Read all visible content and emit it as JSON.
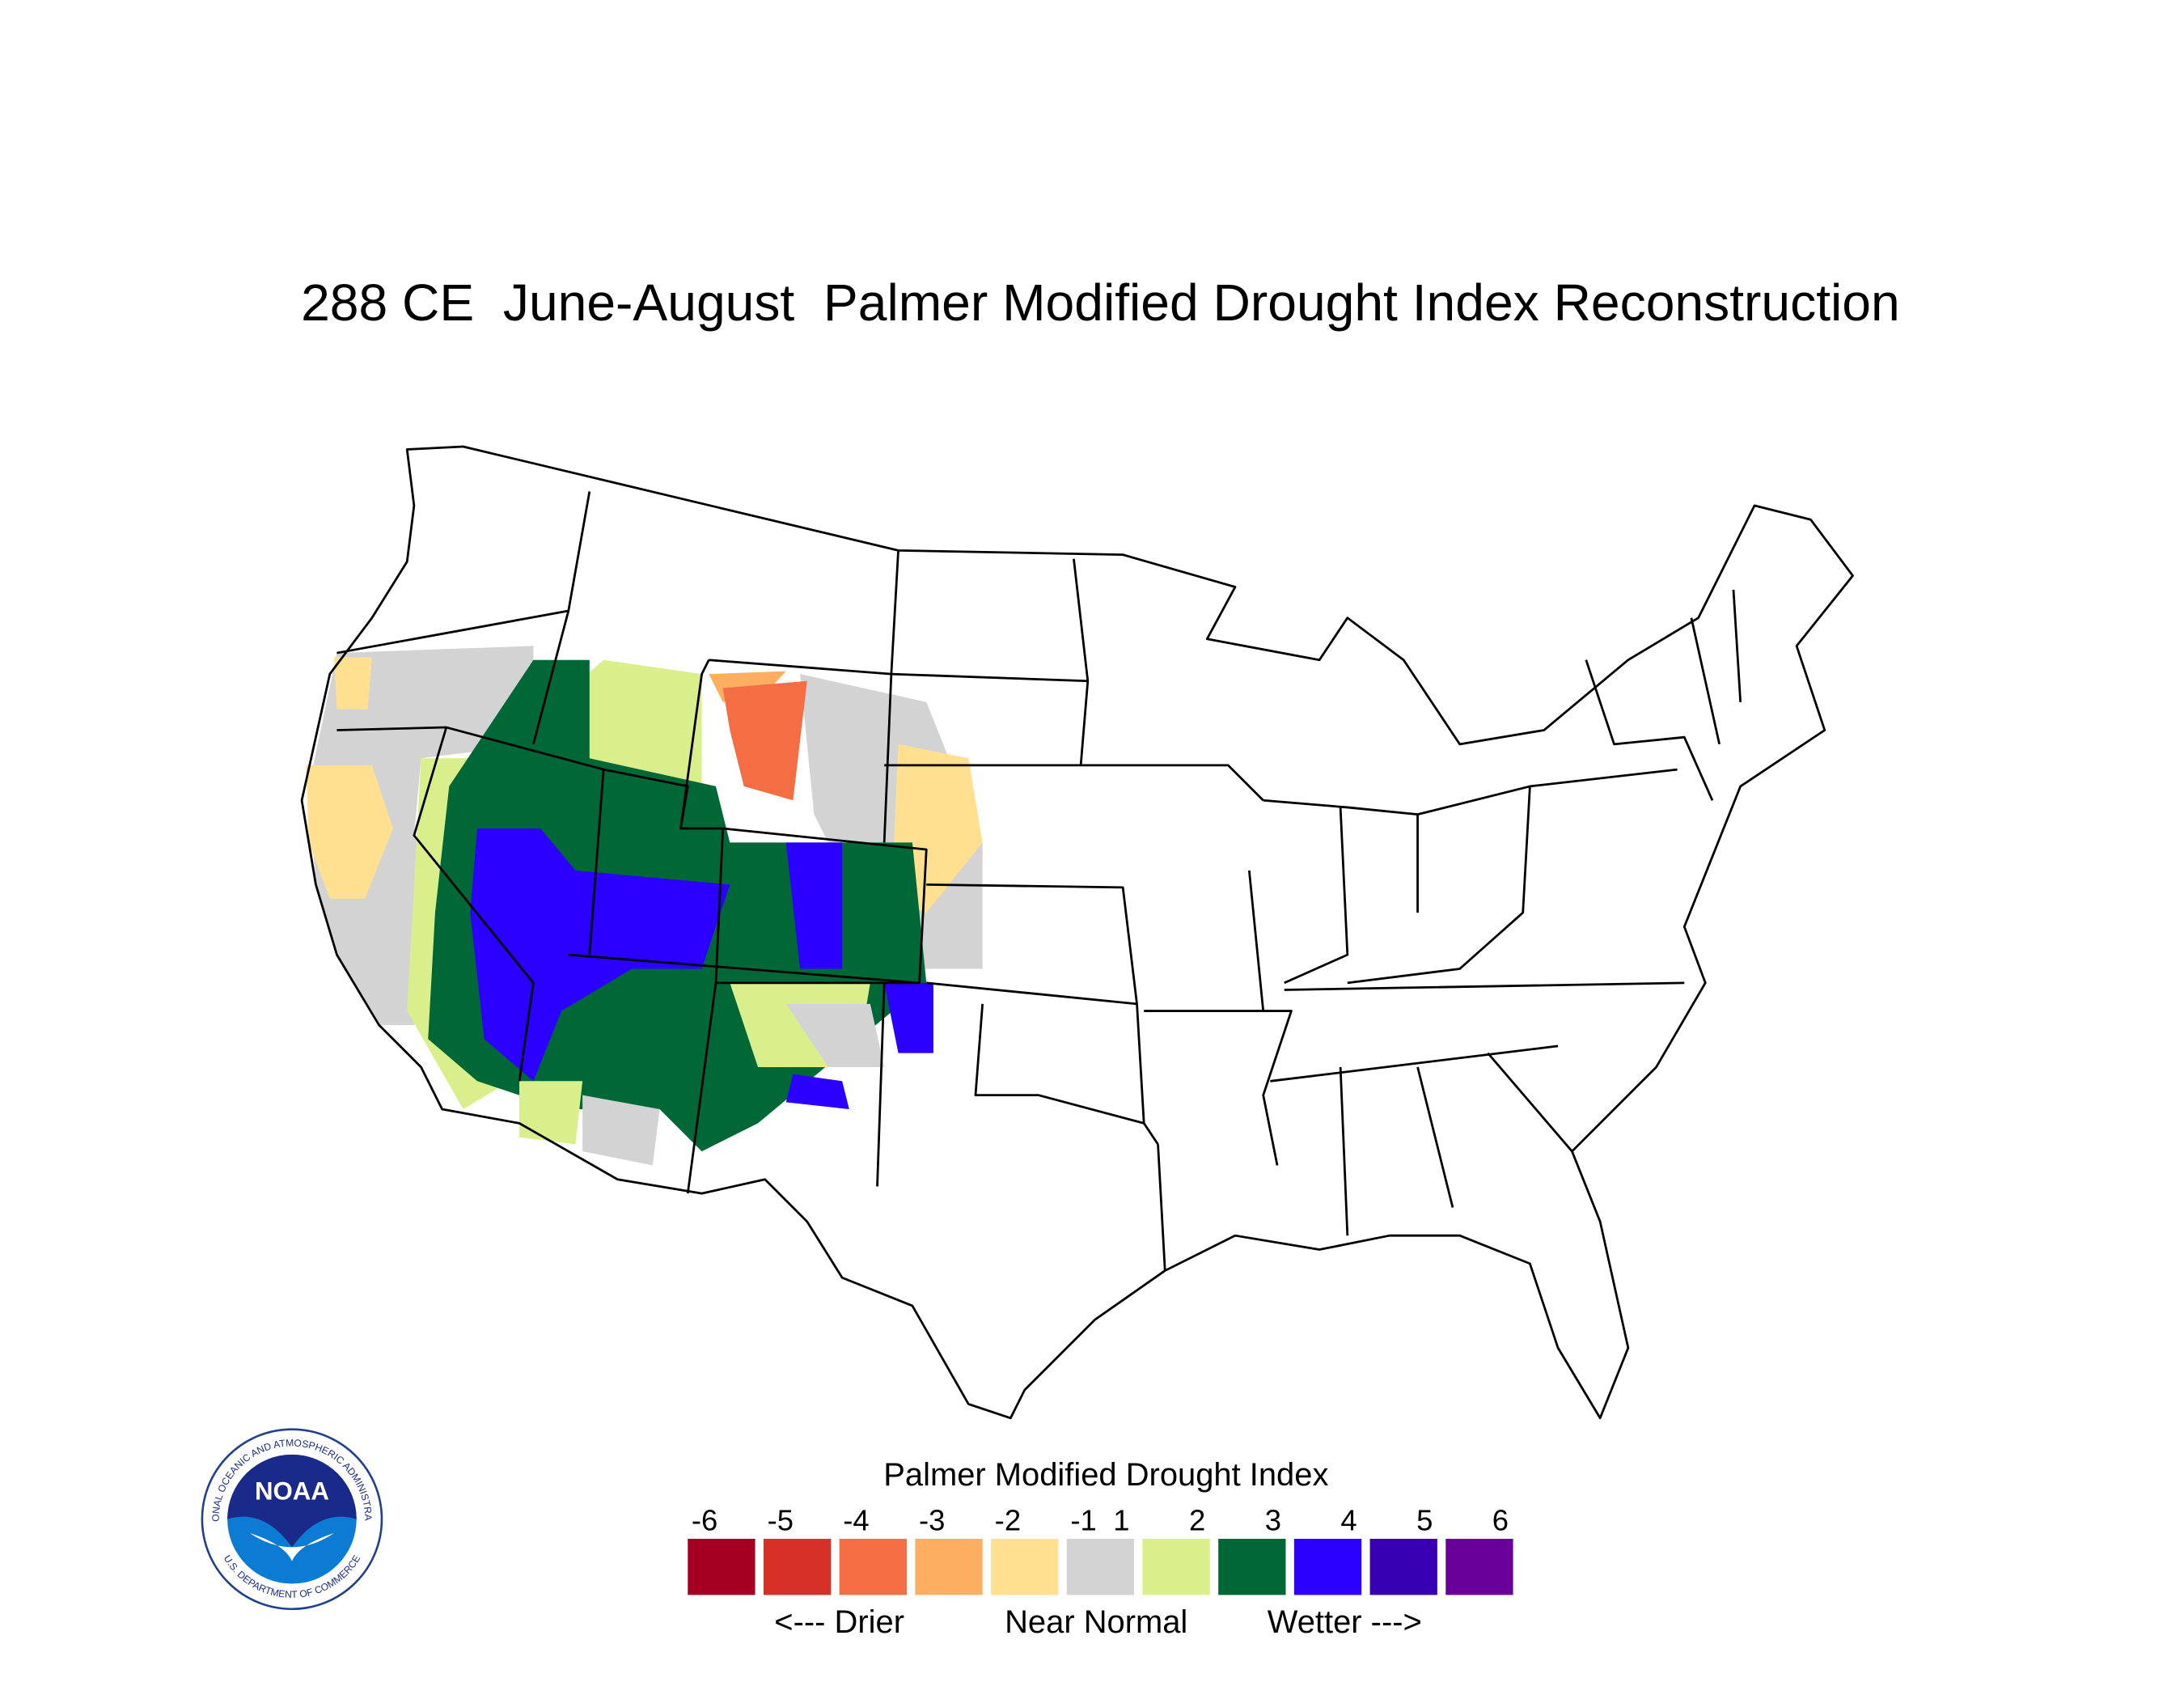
{
  "title": "288 CE  June-August  Palmer Modified Drought Index Reconstruction",
  "legend": {
    "title": "Palmer Modified Drought Index",
    "labels": [
      -6,
      -5,
      -4,
      -3,
      -2,
      -1,
      1,
      2,
      3,
      4,
      5,
      6
    ],
    "colors": [
      "#a50021",
      "#d73027",
      "#f46d43",
      "#fdae61",
      "#fee090",
      "#d3d3d3",
      "#d9ef8b",
      "#006837",
      "#2b00ff",
      "#3700b3",
      "#6a0099"
    ],
    "annotations": [
      "<--- Drier",
      "Near Normal",
      "Wetter --->"
    ]
  },
  "logo": {
    "text": "NOAA",
    "ring_top": "NATIONAL OCEANIC AND ATMOSPHERIC ADMINISTRATION",
    "ring_bottom": "U.S. DEPARTMENT OF COMMERCE"
  }
}
